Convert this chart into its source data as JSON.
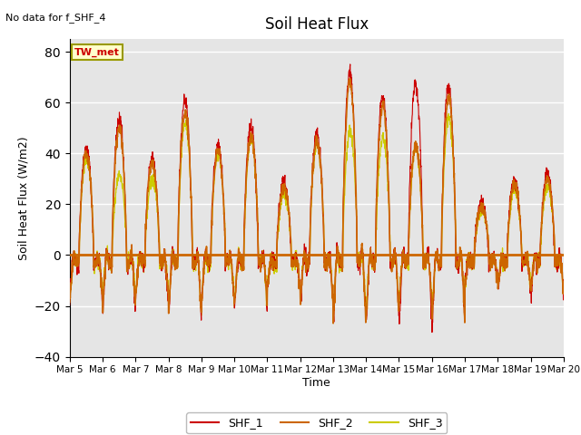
{
  "title": "Soil Heat Flux",
  "subtitle": "No data for f_SHF_4",
  "ylabel": "Soil Heat Flux (W/m2)",
  "xlabel": "Time",
  "ylim": [
    -40,
    85
  ],
  "yticks": [
    -40,
    -20,
    0,
    20,
    40,
    60,
    80
  ],
  "plot_bg": "#e5e5e5",
  "fig_bg": "#ffffff",
  "line_colors": [
    "#cc0000",
    "#cc6600",
    "#cccc00"
  ],
  "legend_entries": [
    "SHF_1",
    "SHF_2",
    "SHF_3"
  ],
  "box_label": "TW_met",
  "n_days": 15,
  "n_pts": 144,
  "day_peaks": [
    42,
    53,
    38,
    61,
    44,
    50,
    29,
    48,
    72,
    63,
    67,
    66,
    20,
    30,
    32
  ],
  "day_peaks2": [
    40,
    50,
    36,
    56,
    41,
    47,
    27,
    45,
    68,
    59,
    43,
    62,
    19,
    28,
    30
  ],
  "day_peaks3": [
    38,
    31,
    30,
    52,
    40,
    46,
    24,
    44,
    49,
    46,
    42,
    54,
    18,
    26,
    27
  ],
  "x_tick_labels": [
    "Mar 5",
    "Mar 6",
    "Mar 7",
    "Mar 8",
    "Mar 9",
    "Mar 10",
    "Mar 11",
    "Mar 12",
    "Mar 13",
    "Mar 14",
    "Mar 15",
    "Mar 16",
    "Mar 17",
    "Mar 18",
    "Mar 19",
    "Mar 20"
  ]
}
